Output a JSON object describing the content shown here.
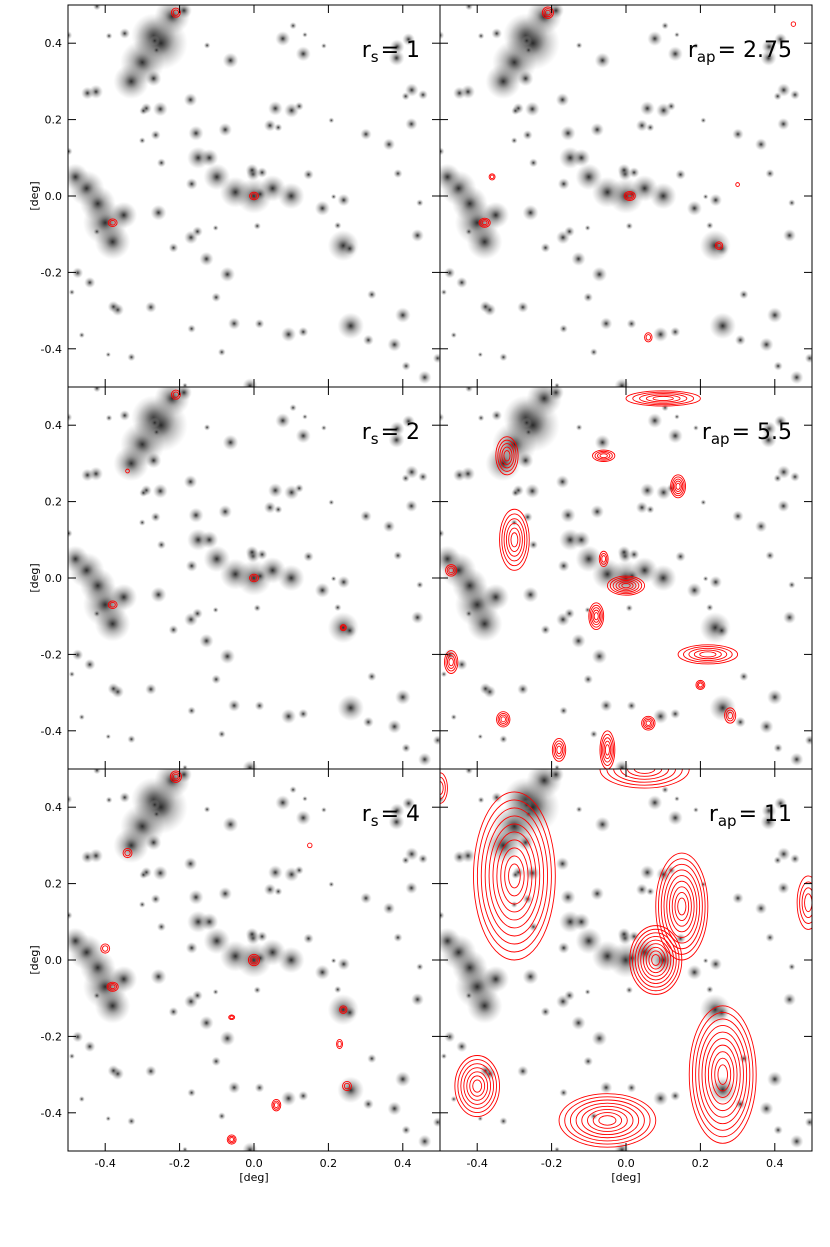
{
  "chart_data": {
    "type": "contour-map",
    "xlim": [
      -0.5,
      0.5
    ],
    "ylim": [
      -0.5,
      0.5
    ],
    "xticks": [
      -0.4,
      -0.2,
      {
        "value": 0,
        "label": "0.0"
      },
      0.2,
      0.4
    ],
    "yticks": [
      -0.4,
      -0.2,
      {
        "value": 0,
        "label": "0.0"
      },
      0.2,
      0.4
    ],
    "xlabel": "[deg]",
    "ylabel": "[deg]",
    "contour_color": "#ff0000",
    "panels": [
      {
        "label": {
          "symbol": "r",
          "subscript": "s",
          "text": "= 1"
        }
      },
      {
        "label": {
          "symbol": "r",
          "subscript": "ap",
          "text": "= 2.75"
        }
      },
      {
        "label": {
          "symbol": "r",
          "subscript": "s",
          "text": "= 2"
        }
      },
      {
        "label": {
          "symbol": "r",
          "subscript": "ap",
          "text": "= 5.5"
        }
      },
      {
        "label": {
          "symbol": "r",
          "subscript": "s",
          "text": "= 4"
        }
      },
      {
        "label": {
          "symbol": "r",
          "subscript": "ap",
          "text": "= 11"
        }
      }
    ]
  }
}
